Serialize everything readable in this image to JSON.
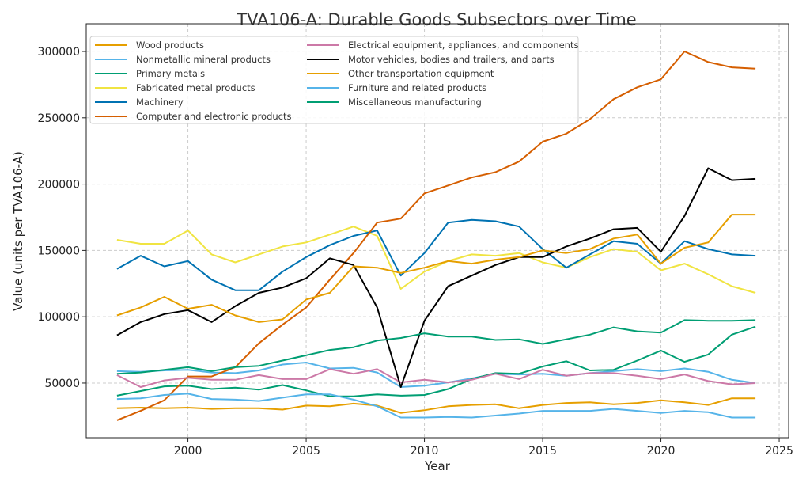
{
  "chart_data": {
    "type": "line",
    "title": "TVA106-A: Durable Goods Subsectors over Time",
    "xlabel": "Year",
    "ylabel": "Value (units per TVA106-A)",
    "xlim": [
      1995.7,
      2025.4
    ],
    "ylim": [
      8800,
      320900
    ],
    "xticks": [
      2000,
      2005,
      2010,
      2015,
      2020,
      2025
    ],
    "yticks": [
      50000,
      100000,
      150000,
      200000,
      250000,
      300000
    ],
    "grid": true,
    "legend_position": "top-left",
    "x": [
      1997,
      1998,
      1999,
      2000,
      2001,
      2002,
      2003,
      2004,
      2005,
      2006,
      2007,
      2008,
      2009,
      2010,
      2011,
      2012,
      2013,
      2014,
      2015,
      2016,
      2017,
      2018,
      2019,
      2020,
      2021,
      2022,
      2023,
      2024
    ],
    "series": [
      {
        "name": "Wood products",
        "color": "#E69F00",
        "values": [
          31000,
          31500,
          31000,
          31500,
          30500,
          31000,
          31000,
          30000,
          33000,
          32500,
          34500,
          33000,
          27500,
          29500,
          32500,
          33500,
          34000,
          31000,
          33500,
          35000,
          35500,
          34000,
          35000,
          37000,
          35500,
          33500,
          38500,
          38500
        ]
      },
      {
        "name": "Nonmetallic mineral products",
        "color": "#56B4E9",
        "values": [
          59000,
          58500,
          59500,
          60000,
          58000,
          57500,
          59500,
          64000,
          65500,
          61000,
          61500,
          58000,
          47000,
          48000,
          50500,
          53500,
          57000,
          56500,
          57000,
          55500,
          57500,
          59000,
          60500,
          59000,
          61000,
          58500,
          52500,
          50000
        ]
      },
      {
        "name": "Primary metals",
        "color": "#009E73",
        "values": [
          40500,
          44000,
          47500,
          48000,
          45500,
          46500,
          45000,
          48500,
          44500,
          40000,
          40000,
          41500,
          40500,
          41000,
          45500,
          53000,
          57500,
          57000,
          62500,
          66500,
          59500,
          60000,
          67000,
          74500,
          66000,
          71500,
          86500,
          92500
        ]
      },
      {
        "name": "Fabricated metal products",
        "color": "#F0E442",
        "values": [
          158000,
          155000,
          155000,
          165000,
          147000,
          141000,
          147000,
          153000,
          156000,
          162000,
          168000,
          161000,
          121000,
          134000,
          142000,
          147000,
          146000,
          148000,
          141000,
          137000,
          145000,
          151000,
          149000,
          135000,
          140000,
          132000,
          123000,
          118000
        ]
      },
      {
        "name": "Machinery",
        "color": "#0072B2",
        "values": [
          136000,
          146000,
          138000,
          142000,
          128000,
          120000,
          120000,
          134000,
          145000,
          154000,
          161000,
          165000,
          131000,
          148000,
          171000,
          173000,
          172000,
          168000,
          151000,
          137000,
          147000,
          157000,
          155000,
          140000,
          157000,
          151000,
          147000,
          146000
        ]
      },
      {
        "name": "Computer and electronic products",
        "color": "#D55E00",
        "values": [
          22000,
          29000,
          37000,
          55000,
          55000,
          62000,
          80000,
          94000,
          107000,
          128000,
          148000,
          171000,
          174000,
          193000,
          199000,
          205000,
          209000,
          217000,
          232000,
          238000,
          249000,
          264000,
          273000,
          279000,
          300000,
          292000,
          288000,
          287000
        ]
      },
      {
        "name": "Electrical equipment, appliances, and components",
        "color": "#CC79A7",
        "values": [
          56000,
          47000,
          52000,
          54000,
          52500,
          52500,
          56000,
          53000,
          53000,
          60500,
          57000,
          60500,
          50500,
          52500,
          50500,
          52500,
          57000,
          53000,
          60000,
          55500,
          57500,
          57500,
          55500,
          53000,
          56500,
          51500,
          49000,
          50000
        ]
      },
      {
        "name": "Motor vehicles, bodies and trailers, and parts",
        "color": "#000000",
        "values": [
          86000,
          96000,
          102000,
          105000,
          96000,
          108000,
          118000,
          122000,
          129000,
          144000,
          139000,
          107000,
          47000,
          97000,
          123000,
          131000,
          139000,
          145000,
          145000,
          153000,
          159000,
          166000,
          167000,
          149000,
          176000,
          212000,
          203000,
          204000
        ]
      },
      {
        "name": "Other transportation equipment",
        "color": "#E69F00",
        "values": [
          101000,
          107000,
          115000,
          106000,
          109000,
          101000,
          96000,
          98000,
          113000,
          118000,
          138000,
          137000,
          133000,
          137000,
          142000,
          140000,
          143000,
          145000,
          150000,
          148000,
          151000,
          159000,
          162000,
          140000,
          152000,
          156000,
          177000,
          177000
        ]
      },
      {
        "name": "Furniture and related products",
        "color": "#56B4E9",
        "values": [
          38000,
          38500,
          41000,
          42000,
          38000,
          37500,
          36500,
          39000,
          41500,
          41500,
          37500,
          32500,
          24000,
          24000,
          24500,
          24000,
          25500,
          27000,
          29000,
          29000,
          29000,
          30500,
          29000,
          27500,
          29000,
          28000,
          24000,
          24000
        ]
      },
      {
        "name": "Miscellaneous manufacturing",
        "color": "#009E73",
        "values": [
          57000,
          58000,
          60000,
          62000,
          59000,
          62000,
          63000,
          67000,
          71000,
          75000,
          77000,
          82000,
          84000,
          87500,
          85000,
          85000,
          82500,
          83000,
          79500,
          83000,
          86500,
          92000,
          89000,
          88000,
          97500,
          97000,
          97000,
          97500
        ]
      }
    ]
  }
}
